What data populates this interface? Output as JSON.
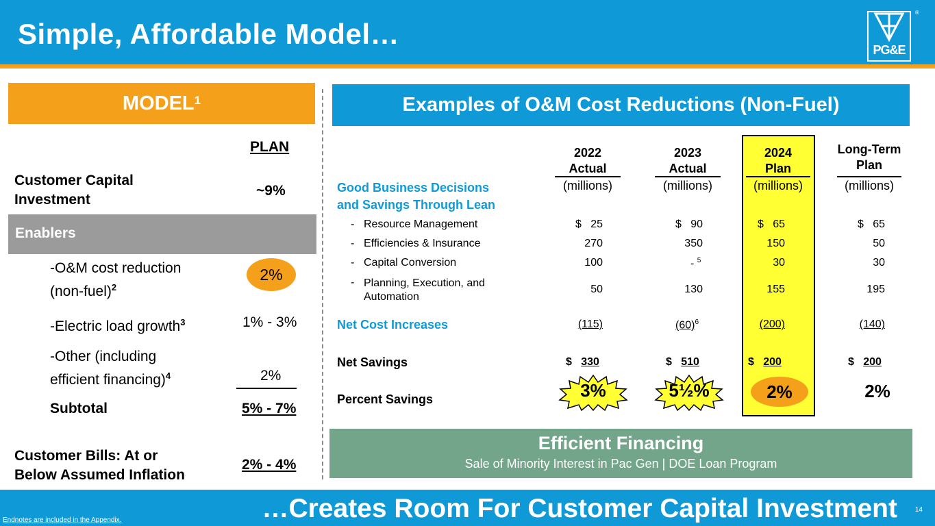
{
  "header": {
    "title": "Simple, Affordable Model…",
    "logo_text": "PG&E",
    "logo_reg": "®"
  },
  "model": {
    "banner": "MODEL",
    "banner_sup": "1",
    "plan_header": "PLAN",
    "customer_capital_label_1": "Customer Capital",
    "customer_capital_label_2": "Investment",
    "customer_capital_value": "~9%",
    "enablers_label": "Enablers",
    "om_label_1": "-O&M cost reduction",
    "om_label_2": "(non-fuel)",
    "om_sup": "2",
    "om_value": "2%",
    "load_label": "-Electric load growth",
    "load_sup": "3",
    "load_value": "1% - 3%",
    "other_label_1": "-Other (including",
    "other_label_2": "efficient financing)",
    "other_sup": "4",
    "other_value": "2%",
    "subtotal_label": "Subtotal",
    "subtotal_value": "5% - 7%",
    "bills_label_1": "Customer Bills: At or",
    "bills_label_2": "Below Assumed Inflation",
    "bills_value": "2% - 4%"
  },
  "examples": {
    "banner": "Examples of O&M Cost Reductions (Non-Fuel)",
    "section_label_1": "Good Business Decisions",
    "section_label_2": "and Savings Through Lean",
    "columns": [
      {
        "line1": "2022",
        "line2": "Actual",
        "unit": "(millions)"
      },
      {
        "line1": "2023",
        "line2": "Actual",
        "unit": "(millions)"
      },
      {
        "line1": "2024",
        "line2": "Plan",
        "unit": "(millions)"
      },
      {
        "line1": "Long-Term",
        "line2": "Plan",
        "unit": "(millions)"
      }
    ],
    "rows": [
      {
        "label": "Resource Management",
        "values": [
          "$   25",
          "$   90",
          "$   65",
          "$   65"
        ]
      },
      {
        "label": "Efficiencies & Insurance",
        "values": [
          "270",
          "350",
          "150",
          "50"
        ]
      },
      {
        "label": "Capital Conversion",
        "values": [
          "100",
          "-",
          "30",
          "30"
        ],
        "sup_2023": "5"
      },
      {
        "label_1": "Planning, Execution, and",
        "label_2": "Automation",
        "values": [
          "50",
          "130",
          "155",
          "195"
        ]
      }
    ],
    "dash": "-",
    "net_cost_label": "Net Cost Increases",
    "net_cost_values": [
      "(115)",
      "(60)",
      "(200)",
      "(140)"
    ],
    "net_cost_sup_2023": "6",
    "net_savings_label": "Net Savings",
    "net_savings_values": [
      "330",
      "510",
      "200",
      "200"
    ],
    "dollar": "$",
    "percent_label": "Percent Savings",
    "percent_values": [
      "3%",
      "5½%",
      "2%",
      "2%"
    ]
  },
  "financing": {
    "title": "Efficient Financing",
    "subtitle": "Sale of Minority Interest in Pac Gen | DOE Loan Program"
  },
  "footer": {
    "tagline": "…Creates Room For Customer Capital Investment",
    "page_number": "14",
    "endnote": "Endnotes are included in the Appendix."
  },
  "colors": {
    "blue": "#0f9ad7",
    "orange": "#f5a01a",
    "yellow": "#ffff33",
    "green": "#72a58a",
    "gray": "#9b9b9b"
  }
}
